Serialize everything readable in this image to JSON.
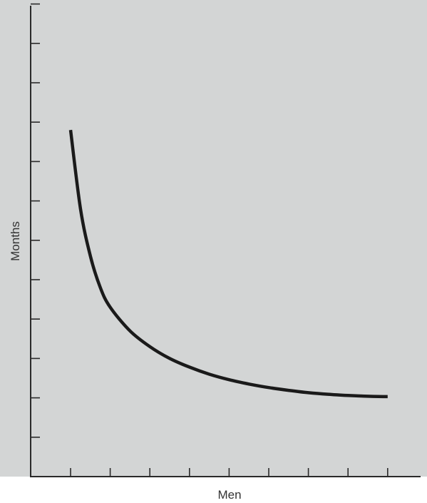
{
  "chart_data": {
    "type": "line",
    "title": "",
    "xlabel": "Men",
    "ylabel": "Months",
    "xlim": [
      0,
      9
    ],
    "ylim": [
      0,
      12
    ],
    "x_ticks": [
      1,
      2,
      3,
      4,
      5,
      6,
      7,
      8,
      9
    ],
    "y_ticks": [
      1,
      2,
      3,
      4,
      5,
      6,
      7,
      8,
      9,
      10,
      11,
      12
    ],
    "tick_labels_shown": false,
    "grid": false,
    "legend": "none",
    "series": [
      {
        "x": [
          1,
          1.25,
          1.5,
          1.75,
          2,
          2.5,
          3,
          3.5,
          4,
          4.5,
          5,
          5.5,
          6,
          6.5,
          7,
          7.5,
          8,
          8.5,
          9
        ],
        "values": [
          8.8,
          6.8,
          5.6,
          4.8,
          4.3,
          3.7,
          3.3,
          3.0,
          2.78,
          2.6,
          2.46,
          2.35,
          2.26,
          2.19,
          2.13,
          2.09,
          2.06,
          2.04,
          2.03
        ]
      }
    ],
    "colors": {
      "background": "#d3d5d5",
      "curve": "#1a1a1a",
      "axis": "#2a2a2a"
    }
  }
}
